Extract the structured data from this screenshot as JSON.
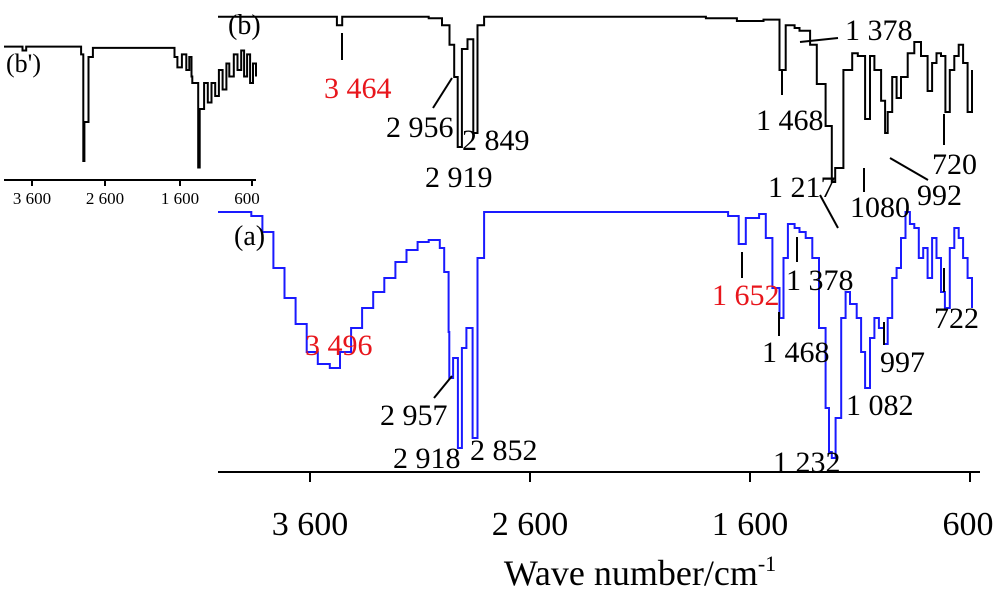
{
  "chart_data": {
    "type": "line",
    "xlabel_main": "Wave number/cm",
    "xlabel_sup": "-1",
    "xlim": [
      4000,
      600
    ],
    "xticks": [
      "3 600",
      "2 600",
      "1 600",
      "600"
    ],
    "inset_xticks": [
      "3 600",
      "2 600",
      "1 600",
      "600"
    ],
    "series": [
      {
        "name": "(b)",
        "color": "#000000",
        "baseline": 0.02,
        "points": [
          [
            4000,
            0.02
          ],
          [
            3500,
            0.02
          ],
          [
            3464,
            0.08
          ],
          [
            3440,
            0.02
          ],
          [
            3050,
            0.03
          ],
          [
            2990,
            0.08
          ],
          [
            2956,
            0.22
          ],
          [
            2935,
            0.45
          ],
          [
            2919,
            0.95
          ],
          [
            2900,
            0.25
          ],
          [
            2875,
            0.18
          ],
          [
            2849,
            0.85
          ],
          [
            2830,
            0.08
          ],
          [
            2800,
            0.02
          ],
          [
            1800,
            0.03
          ],
          [
            1700,
            0.03
          ],
          [
            1660,
            0.05
          ],
          [
            1600,
            0.05
          ],
          [
            1540,
            0.04
          ],
          [
            1468,
            0.4
          ],
          [
            1440,
            0.08
          ],
          [
            1400,
            0.1
          ],
          [
            1378,
            0.12
          ],
          [
            1330,
            0.22
          ],
          [
            1300,
            0.5
          ],
          [
            1260,
            0.8
          ],
          [
            1232,
            1.2
          ],
          [
            1217,
            1.1
          ],
          [
            1180,
            0.4
          ],
          [
            1140,
            0.28
          ],
          [
            1115,
            0.3
          ],
          [
            1082,
            0.75
          ],
          [
            1060,
            0.3
          ],
          [
            1040,
            0.4
          ],
          [
            1010,
            0.62
          ],
          [
            992,
            0.85
          ],
          [
            980,
            0.7
          ],
          [
            960,
            0.45
          ],
          [
            940,
            0.6
          ],
          [
            920,
            0.45
          ],
          [
            890,
            0.28
          ],
          [
            860,
            0.2
          ],
          [
            830,
            0.3
          ],
          [
            800,
            0.55
          ],
          [
            780,
            0.35
          ],
          [
            760,
            0.28
          ],
          [
            740,
            0.3
          ],
          [
            720,
            0.7
          ],
          [
            700,
            0.4
          ],
          [
            680,
            0.3
          ],
          [
            660,
            0.22
          ],
          [
            640,
            0.35
          ],
          [
            620,
            0.7
          ],
          [
            600,
            0.4
          ]
        ]
      },
      {
        "name": "(a)",
        "color": "#1a1aff",
        "baseline": 0.02,
        "points": [
          [
            4000,
            0.02
          ],
          [
            3850,
            0.04
          ],
          [
            3800,
            0.12
          ],
          [
            3750,
            0.3
          ],
          [
            3700,
            0.45
          ],
          [
            3650,
            0.58
          ],
          [
            3600,
            0.72
          ],
          [
            3550,
            0.78
          ],
          [
            3496,
            0.8
          ],
          [
            3450,
            0.72
          ],
          [
            3400,
            0.6
          ],
          [
            3350,
            0.5
          ],
          [
            3300,
            0.42
          ],
          [
            3250,
            0.35
          ],
          [
            3200,
            0.27
          ],
          [
            3150,
            0.21
          ],
          [
            3100,
            0.17
          ],
          [
            3050,
            0.16
          ],
          [
            3000,
            0.2
          ],
          [
            2980,
            0.32
          ],
          [
            2960,
            0.62
          ],
          [
            2957,
            0.85
          ],
          [
            2940,
            0.75
          ],
          [
            2918,
            1.2
          ],
          [
            2900,
            0.7
          ],
          [
            2880,
            0.6
          ],
          [
            2852,
            1.15
          ],
          [
            2830,
            0.25
          ],
          [
            2800,
            0.02
          ],
          [
            2300,
            0.02
          ],
          [
            2000,
            0.02
          ],
          [
            1800,
            0.02
          ],
          [
            1700,
            0.04
          ],
          [
            1652,
            0.18
          ],
          [
            1620,
            0.05
          ],
          [
            1560,
            0.03
          ],
          [
            1530,
            0.15
          ],
          [
            1500,
            0.4
          ],
          [
            1468,
            0.55
          ],
          [
            1450,
            0.25
          ],
          [
            1430,
            0.08
          ],
          [
            1400,
            0.1
          ],
          [
            1378,
            0.12
          ],
          [
            1350,
            0.15
          ],
          [
            1320,
            0.25
          ],
          [
            1290,
            0.6
          ],
          [
            1260,
            1.0
          ],
          [
            1245,
            1.22
          ],
          [
            1232,
            1.25
          ],
          [
            1215,
            1.05
          ],
          [
            1190,
            0.55
          ],
          [
            1170,
            0.42
          ],
          [
            1150,
            0.48
          ],
          [
            1120,
            0.55
          ],
          [
            1100,
            0.72
          ],
          [
            1082,
            0.9
          ],
          [
            1060,
            0.65
          ],
          [
            1040,
            0.55
          ],
          [
            1020,
            0.6
          ],
          [
            997,
            0.68
          ],
          [
            980,
            0.55
          ],
          [
            960,
            0.35
          ],
          [
            940,
            0.3
          ],
          [
            920,
            0.15
          ],
          [
            900,
            0.02
          ],
          [
            880,
            0.08
          ],
          [
            860,
            0.1
          ],
          [
            840,
            0.25
          ],
          [
            820,
            0.2
          ],
          [
            800,
            0.35
          ],
          [
            780,
            0.15
          ],
          [
            760,
            0.25
          ],
          [
            740,
            0.42
          ],
          [
            722,
            0.5
          ],
          [
            700,
            0.2
          ],
          [
            680,
            0.1
          ],
          [
            660,
            0.15
          ],
          [
            640,
            0.25
          ],
          [
            620,
            0.35
          ],
          [
            600,
            0.5
          ]
        ]
      },
      {
        "name": "(b')",
        "color": "#000000",
        "baseline": 0.02,
        "points": [
          [
            4000,
            0.02
          ],
          [
            3750,
            0.05
          ],
          [
            3700,
            0.02
          ],
          [
            3000,
            0.02
          ],
          [
            2960,
            0.08
          ],
          [
            2930,
            0.9
          ],
          [
            2915,
            0.6
          ],
          [
            2880,
            0.6
          ],
          [
            2860,
            0.1
          ],
          [
            2800,
            0.03
          ],
          [
            1800,
            0.03
          ],
          [
            1700,
            0.1
          ],
          [
            1660,
            0.18
          ],
          [
            1600,
            0.08
          ],
          [
            1540,
            0.2
          ],
          [
            1500,
            0.1
          ],
          [
            1470,
            0.25
          ],
          [
            1460,
            0.3
          ],
          [
            1400,
            0.3
          ],
          [
            1380,
            0.95
          ],
          [
            1360,
            0.5
          ],
          [
            1300,
            0.3
          ],
          [
            1250,
            0.45
          ],
          [
            1200,
            0.3
          ],
          [
            1150,
            0.4
          ],
          [
            1100,
            0.2
          ],
          [
            1050,
            0.35
          ],
          [
            1000,
            0.15
          ],
          [
            960,
            0.25
          ],
          [
            900,
            0.08
          ],
          [
            850,
            0.2
          ],
          [
            800,
            0.05
          ],
          [
            760,
            0.25
          ],
          [
            720,
            0.08
          ],
          [
            680,
            0.3
          ],
          [
            640,
            0.15
          ],
          [
            600,
            0.25
          ]
        ]
      }
    ],
    "panel_labels": [
      "(b)",
      "(a)",
      "(b')"
    ],
    "annotations": {
      "b": [
        {
          "text": "3 464",
          "color": "#e8161c"
        },
        {
          "text": "2 956",
          "color": "#000000"
        },
        {
          "text": "2 849",
          "color": "#000000"
        },
        {
          "text": "2 919",
          "color": "#000000"
        },
        {
          "text": "1 378",
          "color": "#000000"
        },
        {
          "text": "1 468",
          "color": "#000000"
        },
        {
          "text": "1 217",
          "color": "#000000"
        },
        {
          "text": "1080",
          "color": "#000000"
        },
        {
          "text": "992",
          "color": "#000000"
        },
        {
          "text": "720",
          "color": "#000000"
        }
      ],
      "a": [
        {
          "text": "3 496",
          "color": "#e8161c"
        },
        {
          "text": "2 957",
          "color": "#000000"
        },
        {
          "text": "2 918",
          "color": "#000000"
        },
        {
          "text": "2 852",
          "color": "#000000"
        },
        {
          "text": "1 652",
          "color": "#e8161c"
        },
        {
          "text": "1 378",
          "color": "#000000"
        },
        {
          "text": "1 468",
          "color": "#000000"
        },
        {
          "text": "997",
          "color": "#000000"
        },
        {
          "text": "722",
          "color": "#000000"
        },
        {
          "text": "1 082",
          "color": "#000000"
        },
        {
          "text": "1 232",
          "color": "#000000"
        }
      ]
    },
    "grid": false,
    "legend": "none"
  }
}
